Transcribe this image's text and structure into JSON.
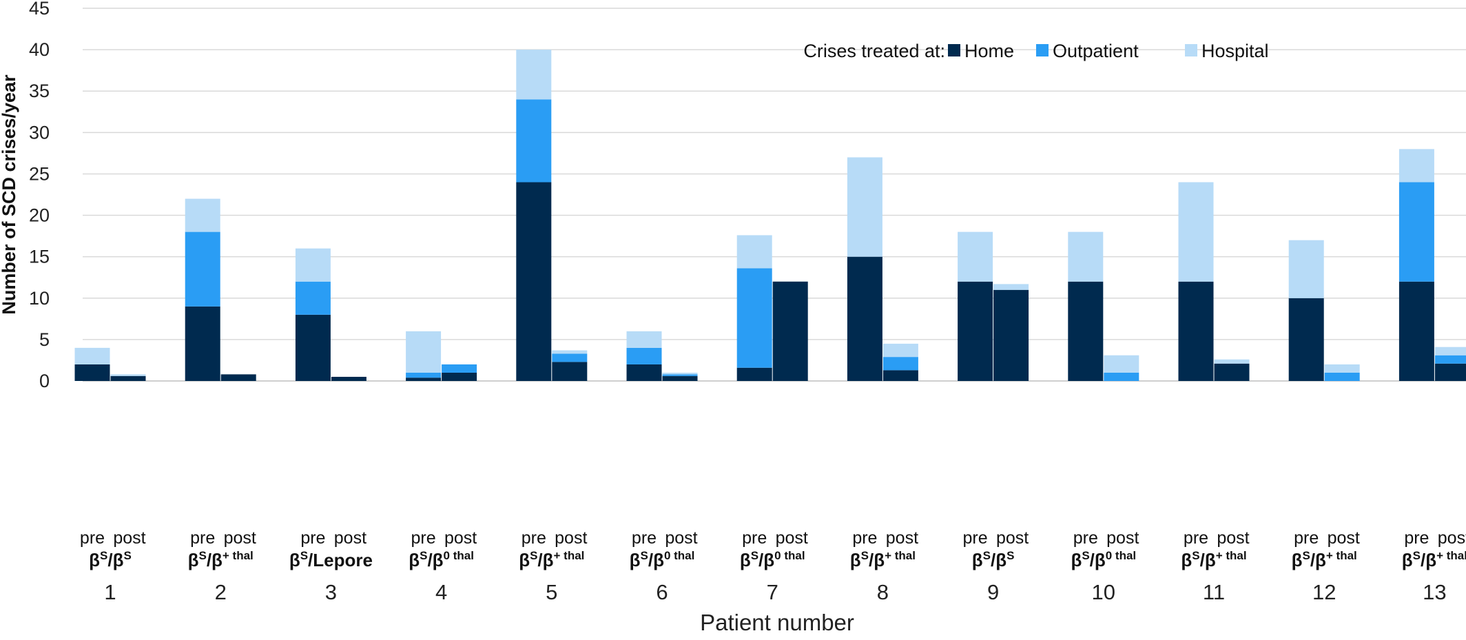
{
  "chart_data": {
    "type": "bar",
    "stacked": true,
    "xlabel": "Patient number",
    "ylabel": "Number of SCD crises/year",
    "ylim": [
      0,
      45
    ],
    "yticks": [
      0,
      5,
      10,
      15,
      20,
      25,
      30,
      35,
      40,
      45
    ],
    "grid": "horizontal",
    "legend": {
      "title": "Crises treated at:",
      "position": "top-right",
      "entries": [
        "Home",
        "Outpatient",
        "Hospital"
      ]
    },
    "series_colors": [
      "#002a4f",
      "#2a9df4",
      "#b7dbf7"
    ],
    "bar_labels": [
      "pre",
      "post"
    ],
    "patients": [
      {
        "number": "1",
        "genotype": [
          "β",
          "S",
          "/β",
          "S",
          ""
        ],
        "pre": [
          2,
          0,
          2
        ],
        "post": [
          0.6,
          0,
          0.2
        ]
      },
      {
        "number": "2",
        "genotype": [
          "β",
          "S",
          "/β",
          "+ thal",
          ""
        ],
        "pre": [
          9,
          9,
          4
        ],
        "post": [
          0.8,
          0,
          0
        ]
      },
      {
        "number": "3",
        "genotype": [
          "β",
          "S",
          "/Lepore",
          "",
          ""
        ],
        "pre": [
          8,
          4,
          4
        ],
        "post": [
          0.5,
          0,
          0
        ]
      },
      {
        "number": "4",
        "genotype": [
          "β",
          "S",
          "/β",
          "0 thal",
          ""
        ],
        "pre": [
          0.4,
          0.6,
          5
        ],
        "post": [
          1,
          1,
          0
        ]
      },
      {
        "number": "5",
        "genotype": [
          "β",
          "S",
          "/β",
          "+ thal",
          ""
        ],
        "pre": [
          24,
          10,
          6
        ],
        "post": [
          2.3,
          1,
          0.4
        ]
      },
      {
        "number": "6",
        "genotype": [
          "β",
          "S",
          "/β",
          "0 thal",
          ""
        ],
        "pre": [
          2,
          2,
          2
        ],
        "post": [
          0.6,
          0.2,
          0.2
        ]
      },
      {
        "number": "7",
        "genotype": [
          "β",
          "S",
          "/β",
          "0 thal",
          ""
        ],
        "pre": [
          1.6,
          12,
          4
        ],
        "post": [
          12,
          0,
          0
        ]
      },
      {
        "number": "8",
        "genotype": [
          "β",
          "S",
          "/β",
          "+ thal",
          ""
        ],
        "pre": [
          15,
          0,
          12
        ],
        "post": [
          1.3,
          1.6,
          1.6
        ]
      },
      {
        "number": "9",
        "genotype": [
          "β",
          "S",
          "/β",
          "S",
          ""
        ],
        "pre": [
          12,
          0,
          6
        ],
        "post": [
          11,
          0,
          0.7
        ]
      },
      {
        "number": "10",
        "genotype": [
          "β",
          "S",
          "/β",
          "0 thal",
          ""
        ],
        "pre": [
          12,
          0,
          6
        ],
        "post": [
          0,
          1,
          2.1
        ]
      },
      {
        "number": "11",
        "genotype": [
          "β",
          "S",
          "/β",
          "+ thal",
          ""
        ],
        "pre": [
          12,
          0,
          12
        ],
        "post": [
          2.1,
          0,
          0.5
        ]
      },
      {
        "number": "12",
        "genotype": [
          "β",
          "S",
          "/β",
          "+ thal",
          ""
        ],
        "pre": [
          10,
          0,
          7
        ],
        "post": [
          0,
          1,
          1
        ]
      },
      {
        "number": "13",
        "genotype": [
          "β",
          "S",
          "/β",
          "+ thal",
          ""
        ],
        "pre": [
          12,
          12,
          4
        ],
        "post": [
          2.1,
          1,
          1
        ]
      }
    ]
  }
}
